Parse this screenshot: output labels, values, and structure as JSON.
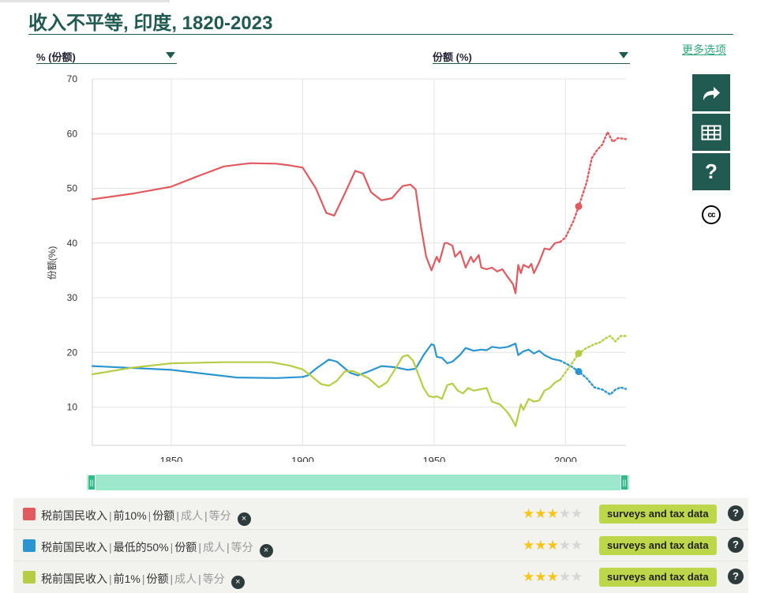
{
  "title": "收入不平等, 印度, 1820-2023",
  "controls": {
    "y_unit_select": "% (份额)",
    "indicator_select": "份额 (%)",
    "more_options": "更多选项"
  },
  "side_buttons": {
    "share_icon": "share-arrow-icon",
    "table_icon": "table-grid-icon",
    "help_label": "?",
    "license_label": "cc"
  },
  "slider": {
    "left_grip": "||",
    "right_grip": "||",
    "range": [
      1820,
      2023
    ]
  },
  "legend": [
    {
      "color": "#e05a60",
      "name": "税前国民收入",
      "group": "前10%",
      "measure": "份额",
      "population": "成人",
      "equivalence": "等分",
      "remove": "×",
      "stars": 3,
      "source": "surveys and tax data",
      "help": "?"
    },
    {
      "color": "#2b95d0",
      "name": "税前国民收入",
      "group": "最低的50%",
      "measure": "份额",
      "population": "成人",
      "equivalence": "等分",
      "remove": "×",
      "stars": 3,
      "source": "surveys and tax data",
      "help": "?"
    },
    {
      "color": "#b7cc45",
      "name": "税前国民收入",
      "group": "前1%",
      "measure": "份额",
      "population": "成人",
      "equivalence": "等分",
      "remove": "×",
      "stars": 3,
      "source": "surveys and tax data",
      "help": "?"
    }
  ],
  "chart_data": {
    "type": "line",
    "title": "收入不平等, 印度, 1820-2023",
    "ylabel": "份额(%)",
    "xlabel": "",
    "xlim": [
      1820,
      2023
    ],
    "ylim": [
      3,
      70
    ],
    "x_ticks": [
      1850,
      1900,
      1950,
      2000
    ],
    "y_ticks": [
      10,
      20,
      30,
      40,
      50,
      60,
      70
    ],
    "grid": true,
    "highlight_year": 2005,
    "series": [
      {
        "color": "#e05a60",
        "solid": [
          [
            1820,
            48
          ],
          [
            1835,
            49
          ],
          [
            1850,
            50.3
          ],
          [
            1860,
            52.2
          ],
          [
            1870,
            54
          ],
          [
            1880,
            54.6
          ],
          [
            1890,
            54.5
          ],
          [
            1895,
            54.2
          ],
          [
            1900,
            53.8
          ],
          [
            1905,
            50
          ],
          [
            1909,
            45.5
          ],
          [
            1912,
            45
          ],
          [
            1916,
            49
          ],
          [
            1920,
            53.2
          ],
          [
            1923,
            52.7
          ],
          [
            1926,
            49.3
          ],
          [
            1930,
            47.8
          ],
          [
            1934,
            48.2
          ],
          [
            1938,
            50.4
          ],
          [
            1941,
            50.7
          ],
          [
            1943,
            49.8
          ],
          [
            1945,
            43
          ],
          [
            1947,
            37.5
          ],
          [
            1949,
            35
          ],
          [
            1951,
            37.5
          ],
          [
            1952,
            36.5
          ],
          [
            1954,
            40
          ],
          [
            1955,
            40
          ],
          [
            1957,
            39.5
          ],
          [
            1958,
            37.5
          ],
          [
            1960,
            38.5
          ],
          [
            1962,
            35.5
          ],
          [
            1964,
            37.5
          ],
          [
            1965,
            36.5
          ],
          [
            1967,
            37.8
          ],
          [
            1968,
            35.5
          ],
          [
            1970,
            35.2
          ],
          [
            1972,
            35.5
          ],
          [
            1974,
            34.8
          ],
          [
            1976,
            35.2
          ],
          [
            1978,
            33.8
          ],
          [
            1980,
            32.5
          ],
          [
            1981,
            30.8
          ],
          [
            1982,
            36
          ],
          [
            1983,
            34.5
          ],
          [
            1984,
            36
          ],
          [
            1986,
            35.5
          ],
          [
            1987,
            36.2
          ],
          [
            1988,
            34.5
          ],
          [
            1990,
            36.5
          ],
          [
            1992,
            39
          ],
          [
            1994,
            38.8
          ],
          [
            1996,
            40
          ],
          [
            1998,
            40.2
          ]
        ],
        "dotted": [
          [
            1998,
            40.2
          ],
          [
            2000,
            41
          ],
          [
            2003,
            44
          ],
          [
            2005,
            46.7
          ],
          [
            2008,
            51
          ],
          [
            2010,
            55.5
          ],
          [
            2012,
            57
          ],
          [
            2014,
            58
          ],
          [
            2016,
            60.3
          ],
          [
            2018,
            58.5
          ],
          [
            2020,
            59.2
          ],
          [
            2023,
            59
          ]
        ]
      },
      {
        "color": "#2b95d0",
        "solid": [
          [
            1820,
            17.5
          ],
          [
            1850,
            16.8
          ],
          [
            1875,
            15.4
          ],
          [
            1890,
            15.3
          ],
          [
            1900,
            15.5
          ],
          [
            1902,
            15.8
          ],
          [
            1905,
            17
          ],
          [
            1910,
            18.7
          ],
          [
            1913,
            18.3
          ],
          [
            1918,
            16.3
          ],
          [
            1921,
            15.8
          ],
          [
            1925,
            16.5
          ],
          [
            1930,
            17.5
          ],
          [
            1935,
            17.3
          ],
          [
            1940,
            16.8
          ],
          [
            1943,
            17
          ],
          [
            1946,
            19.5
          ],
          [
            1949,
            21.5
          ],
          [
            1950,
            21.3
          ],
          [
            1951,
            19.2
          ],
          [
            1953,
            19
          ],
          [
            1955,
            18
          ],
          [
            1957,
            18.3
          ],
          [
            1960,
            19.6
          ],
          [
            1962,
            20.8
          ],
          [
            1965,
            20.3
          ],
          [
            1968,
            20.5
          ],
          [
            1970,
            20.4
          ],
          [
            1972,
            21
          ],
          [
            1975,
            20.8
          ],
          [
            1978,
            21
          ],
          [
            1981,
            21.6
          ],
          [
            1982,
            19.5
          ],
          [
            1984,
            20.2
          ],
          [
            1986,
            20.5
          ],
          [
            1988,
            19.8
          ],
          [
            1990,
            20.3
          ],
          [
            1992,
            19.5
          ],
          [
            1995,
            18.8
          ],
          [
            1998,
            18.5
          ]
        ],
        "dotted": [
          [
            1998,
            18.5
          ],
          [
            2002,
            17.5
          ],
          [
            2005,
            16.5
          ],
          [
            2008,
            15.3
          ],
          [
            2011,
            13.6
          ],
          [
            2014,
            13.2
          ],
          [
            2017,
            12.3
          ],
          [
            2019,
            13.2
          ],
          [
            2021,
            13.6
          ],
          [
            2023,
            13.3
          ]
        ]
      },
      {
        "color": "#b7cc45",
        "solid": [
          [
            1820,
            16
          ],
          [
            1835,
            17.2
          ],
          [
            1850,
            18
          ],
          [
            1870,
            18.2
          ],
          [
            1888,
            18.2
          ],
          [
            1895,
            17.6
          ],
          [
            1900,
            16.9
          ],
          [
            1903,
            15.8
          ],
          [
            1907,
            14.2
          ],
          [
            1910,
            13.9
          ],
          [
            1913,
            14.8
          ],
          [
            1916,
            16.5
          ],
          [
            1919,
            16.6
          ],
          [
            1922,
            16
          ],
          [
            1925,
            15.3
          ],
          [
            1929,
            13.6
          ],
          [
            1932,
            14.5
          ],
          [
            1935,
            16.8
          ],
          [
            1938,
            19.2
          ],
          [
            1940,
            19.5
          ],
          [
            1942,
            18.5
          ],
          [
            1944,
            16
          ],
          [
            1946,
            13.5
          ],
          [
            1948,
            12
          ],
          [
            1950,
            11.8
          ],
          [
            1951,
            12
          ],
          [
            1953,
            11.5
          ],
          [
            1955,
            14
          ],
          [
            1957,
            14.3
          ],
          [
            1959,
            13
          ],
          [
            1961,
            12.5
          ],
          [
            1963,
            13.5
          ],
          [
            1965,
            13
          ],
          [
            1967,
            13.2
          ],
          [
            1970,
            13.5
          ],
          [
            1972,
            11
          ],
          [
            1975,
            10.5
          ],
          [
            1978,
            9
          ],
          [
            1980,
            7.5
          ],
          [
            1981,
            6.5
          ],
          [
            1982,
            8.5
          ],
          [
            1983,
            10.5
          ],
          [
            1984,
            9.5
          ],
          [
            1986,
            11.5
          ],
          [
            1988,
            11
          ],
          [
            1990,
            11.2
          ],
          [
            1992,
            13
          ],
          [
            1994,
            13.5
          ],
          [
            1996,
            14.5
          ],
          [
            1998,
            15
          ]
        ],
        "dotted": [
          [
            1998,
            15
          ],
          [
            2001,
            17
          ],
          [
            2005,
            19.8
          ],
          [
            2008,
            20.8
          ],
          [
            2011,
            21.5
          ],
          [
            2013,
            21.8
          ],
          [
            2015,
            22.5
          ],
          [
            2017,
            23
          ],
          [
            2019,
            22
          ],
          [
            2021,
            23
          ],
          [
            2023,
            23
          ]
        ]
      }
    ]
  }
}
